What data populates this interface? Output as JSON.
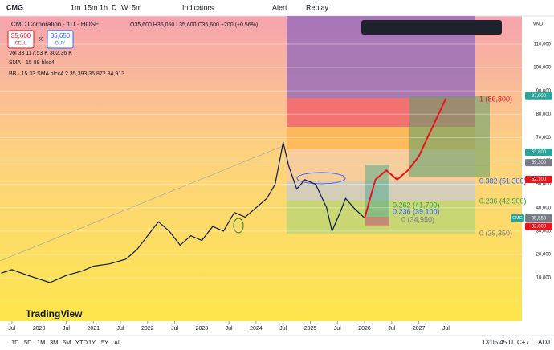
{
  "toolbar": {
    "symbol": "CMG",
    "intervals": [
      "1m",
      "15m",
      "1h",
      "D",
      "W",
      "5m"
    ],
    "indicators": "Indicators",
    "alert": "Alert",
    "replay": "Replay"
  },
  "legend": {
    "title": "CMC Corporation · 1D · HOSE",
    "ohlc": "O35,600 H36,050 L35,600 C35,600 +200 (+0.56%)",
    "sell_price": "35,600",
    "sell": "SELL",
    "spread": "50",
    "buy_price": "35,650",
    "buy": "BUY",
    "volume": "Vol 33  117.53 K  302.36 K",
    "sma": "SMA · 15 89 hlcc4",
    "bb": "BB · 15 33 SMA hlcc4 2  35,393  35,872  34,913"
  },
  "chart": {
    "currency": "VND",
    "symbol_badge": "CMG",
    "xlim": [
      2019.28,
      2028.9
    ],
    "ylim": [
      -8500,
      122000
    ],
    "yticks": [
      {
        "value": 110000,
        "label": "110,000"
      },
      {
        "value": 100000,
        "label": "100,000"
      },
      {
        "value": 90000,
        "label": "90,000"
      },
      {
        "value": 80000,
        "label": "80,000"
      },
      {
        "value": 70000,
        "label": "70,000"
      },
      {
        "value": 60000,
        "label": "60,000"
      },
      {
        "value": 50000,
        "label": "50,000"
      },
      {
        "value": 40000,
        "label": "40,000"
      },
      {
        "value": 30000,
        "label": "30,000"
      },
      {
        "value": 20000,
        "label": "20,000"
      },
      {
        "value": 10000,
        "label": "10,000"
      }
    ],
    "xticks": [
      {
        "value": 2019.5,
        "label": "Jul"
      },
      {
        "value": 2020,
        "label": "2020"
      },
      {
        "value": 2020.5,
        "label": "Jul"
      },
      {
        "value": 2021,
        "label": "2021"
      },
      {
        "value": 2021.5,
        "label": "Jul"
      },
      {
        "value": 2022,
        "label": "2022"
      },
      {
        "value": 2022.5,
        "label": "Jul"
      },
      {
        "value": 2023,
        "label": "2023"
      },
      {
        "value": 2023.5,
        "label": "Jul"
      },
      {
        "value": 2024,
        "label": "2024"
      },
      {
        "value": 2024.5,
        "label": "Jul"
      },
      {
        "value": 2025,
        "label": "2025"
      },
      {
        "value": 2025.5,
        "label": "Jul"
      },
      {
        "value": 2026,
        "label": "2026"
      },
      {
        "value": 2026.5,
        "label": "Jul"
      },
      {
        "value": 2027,
        "label": "2027"
      },
      {
        "value": 2027.5,
        "label": "Jul"
      }
    ],
    "series": [
      {
        "color": "#0d1a4a",
        "x": [
          2019.3,
          2019.5,
          2019.8,
          2020.2,
          2020.5,
          2020.8,
          2021.0,
          2021.3,
          2021.6,
          2021.8,
          2022.0,
          2022.2,
          2022.4,
          2022.6,
          2022.8,
          2023.0,
          2023.2,
          2023.4,
          2023.6,
          2023.8,
          2024.0,
          2024.2,
          2024.35,
          2024.5,
          2024.6,
          2024.75,
          2024.9,
          2025.1,
          2025.3,
          2025.4,
          2025.55,
          2025.65,
          2025.8,
          2026.0
        ],
        "values": [
          12000,
          13500,
          11000,
          8000,
          11000,
          13000,
          15000,
          16000,
          18000,
          22000,
          28000,
          34000,
          30000,
          24000,
          28000,
          26000,
          32000,
          30000,
          38000,
          36000,
          40000,
          44000,
          50000,
          68000,
          58000,
          48000,
          52000,
          50000,
          40000,
          30000,
          38000,
          44000,
          40000,
          35600
        ]
      },
      {
        "color": "#e8141e",
        "x": [
          2026.0,
          2026.2,
          2026.4,
          2026.6,
          2026.8,
          2027.0,
          2027.5
        ],
        "values": [
          35600,
          52000,
          56000,
          52000,
          56000,
          62000,
          86800
        ]
      }
    ],
    "price_badges": [
      {
        "value": 87900,
        "label": "87,900",
        "color": "#26a69a"
      },
      {
        "value": 63800,
        "label": "63,800",
        "color": "#26a69a"
      },
      {
        "value": 59300,
        "label": "59,300",
        "color": "#787b86"
      },
      {
        "value": 52100,
        "label": "52,100",
        "color": "#e8141e"
      },
      {
        "value": 35600,
        "label": "35,600",
        "color": "#26a69a"
      },
      {
        "value": 35550,
        "label": "35,550",
        "color": "#787b86"
      },
      {
        "value": 32000,
        "label": "32,000",
        "color": "#e8141e"
      }
    ],
    "fib_labels": [
      "1 (86,800)",
      "0.382 (51,300)",
      "0.236 (42,900)",
      "0 (29,350)",
      "0.262 (41,700)",
      "0.236 (39,100)",
      "0 (34,950)"
    ]
  },
  "watermark": "TradingView",
  "bottom": {
    "ranges": [
      "1D",
      "5D",
      "1M",
      "3M",
      "6M",
      "YTD",
      "1Y",
      "5Y",
      "All"
    ],
    "clock": "13:05:45 UTC+7",
    "adj": "ADJ"
  }
}
